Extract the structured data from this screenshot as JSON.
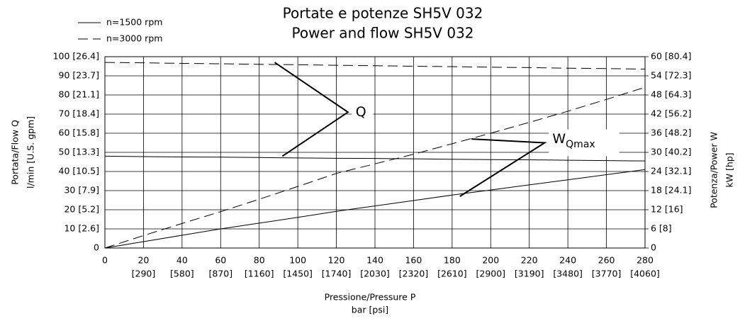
{
  "chart_data": {
    "type": "line",
    "title": [
      "Portate e potenze SH5V 032",
      "Power and flow SH5V 032"
    ],
    "x_label": [
      "Pressione/Pressure P",
      "bar [psi]"
    ],
    "y_label": [
      "Portata/Flow Q",
      "l/min [U.S. gpm]"
    ],
    "y2_label": [
      "Potenza/Power W",
      "kW [hp]"
    ],
    "xlim": [
      0,
      280
    ],
    "xticks": [
      0,
      20,
      40,
      60,
      80,
      100,
      120,
      140,
      160,
      180,
      200,
      220,
      240,
      260,
      280
    ],
    "x_psi_ticks": [
      {
        "value": 20,
        "label": "[290]"
      },
      {
        "value": 40,
        "label": "[580]"
      },
      {
        "value": 60,
        "label": "[870]"
      },
      {
        "value": 80,
        "label": "[1160]"
      },
      {
        "value": 100,
        "label": "[1450]"
      },
      {
        "value": 120,
        "label": "[1740]"
      },
      {
        "value": 140,
        "label": "[2030]"
      },
      {
        "value": 160,
        "label": "[2320]"
      },
      {
        "value": 180,
        "label": "[2610]"
      },
      {
        "value": 200,
        "label": "[2900]"
      },
      {
        "value": 220,
        "label": "[3190]"
      },
      {
        "value": 240,
        "label": "[3480]"
      },
      {
        "value": 260,
        "label": "[3770]"
      },
      {
        "value": 280,
        "label": "[4060]"
      }
    ],
    "ylim": [
      0,
      100
    ],
    "yticks": [
      0,
      {
        "value": 10,
        "label": "10 [2.6]"
      },
      {
        "value": 20,
        "label": "20 [5.2]"
      },
      {
        "value": 30,
        "label": "30 [7.9]"
      },
      {
        "value": 40,
        "label": "40 [10.5]"
      },
      {
        "value": 50,
        "label": "50 [13.3]"
      },
      {
        "value": 60,
        "label": "60 [15.8]"
      },
      {
        "value": 70,
        "label": "70 [18.4]"
      },
      {
        "value": 80,
        "label": "80 [21.1]"
      },
      {
        "value": 90,
        "label": "90 [23.7]"
      },
      {
        "value": 100,
        "label": "100 [26.4]"
      }
    ],
    "y2lim": [
      0,
      60
    ],
    "y2ticks": [
      0,
      {
        "value": 6,
        "label": "6 [8]"
      },
      {
        "value": 12,
        "label": "12 [16]"
      },
      {
        "value": 18,
        "label": "18 [24.1]"
      },
      {
        "value": 24,
        "label": "24 [32.1]"
      },
      {
        "value": 30,
        "label": "30 [40.2]"
      },
      {
        "value": 36,
        "label": "36 [48.2]"
      },
      {
        "value": 42,
        "label": "42 [56.2]"
      },
      {
        "value": 48,
        "label": "48 [64.3]"
      },
      {
        "value": 54,
        "label": "54 [72.3]"
      },
      {
        "value": 60,
        "label": "60 [80.4]"
      }
    ],
    "grid": true,
    "color": "#000000",
    "x": [
      0,
      20,
      40,
      60,
      80,
      100,
      120,
      140,
      160,
      180,
      200,
      220,
      240,
      260,
      280
    ],
    "series": [
      {
        "name": "n=1500 rpm",
        "dash": "solid",
        "flow": [
          48,
          47.8,
          47.6,
          47.5,
          47.3,
          47.1,
          46.9,
          46.8,
          46.6,
          46.4,
          46.2,
          46.1,
          45.9,
          45.7,
          45.5
        ],
        "power": [
          0,
          2,
          4,
          6,
          7.8,
          9.6,
          11.5,
          13.2,
          14.9,
          16.6,
          18.2,
          19.8,
          21.4,
          23,
          24.6
        ]
      },
      {
        "name": "n=3000 rpm",
        "dash": "dashed",
        "flow": [
          97,
          96.8,
          96.5,
          96.3,
          96,
          95.8,
          95.5,
          95.3,
          95,
          94.8,
          94.5,
          94.3,
          94,
          93.8,
          93.5
        ],
        "power": [
          0,
          3.9,
          7.7,
          11.4,
          15.3,
          19.3,
          23.4,
          26.4,
          29.4,
          32.7,
          36,
          39.4,
          42.9,
          46.6,
          50.4
        ]
      }
    ],
    "annotations": [
      {
        "text": "Q"
      },
      {
        "text": "W",
        "subscript": "Qmax"
      }
    ]
  }
}
